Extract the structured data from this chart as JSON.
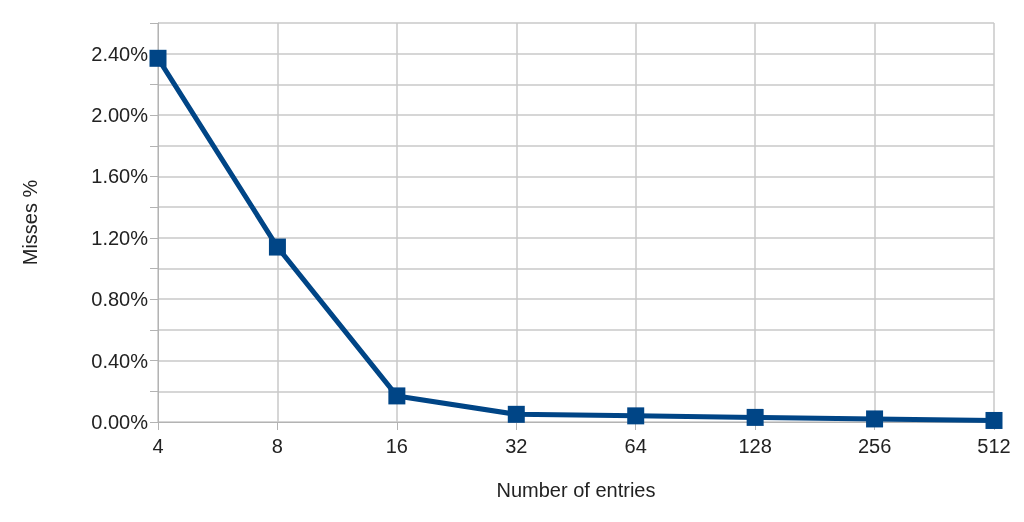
{
  "chart_data": {
    "type": "line",
    "xlabel": "Number of entries",
    "ylabel": "Misses %",
    "categories": [
      "4",
      "8",
      "16",
      "32",
      "64",
      "128",
      "256",
      "512"
    ],
    "series": [
      {
        "color": "#004586",
        "values": [
          2.37,
          1.14,
          0.17,
          0.05,
          0.04,
          0.03,
          0.02,
          0.01
        ]
      }
    ],
    "ylim": [
      0,
      2.6
    ],
    "yticks": [
      {
        "value": 0,
        "label": "0.00%"
      },
      {
        "value": 0.2,
        "label": null
      },
      {
        "value": 0.4,
        "label": "0.40%"
      },
      {
        "value": 0.6,
        "label": null
      },
      {
        "value": 0.8,
        "label": "0.80%"
      },
      {
        "value": 1.0,
        "label": null
      },
      {
        "value": 1.2,
        "label": "1.20%"
      },
      {
        "value": 1.4,
        "label": null
      },
      {
        "value": 1.6,
        "label": "1.60%"
      },
      {
        "value": 1.8,
        "label": null
      },
      {
        "value": 2.0,
        "label": "2.00%"
      },
      {
        "value": 2.2,
        "label": null
      },
      {
        "value": 2.4,
        "label": "2.40%"
      },
      {
        "value": 2.6,
        "label": null
      }
    ],
    "grid": true,
    "marker": "square",
    "line_style": "solid"
  }
}
